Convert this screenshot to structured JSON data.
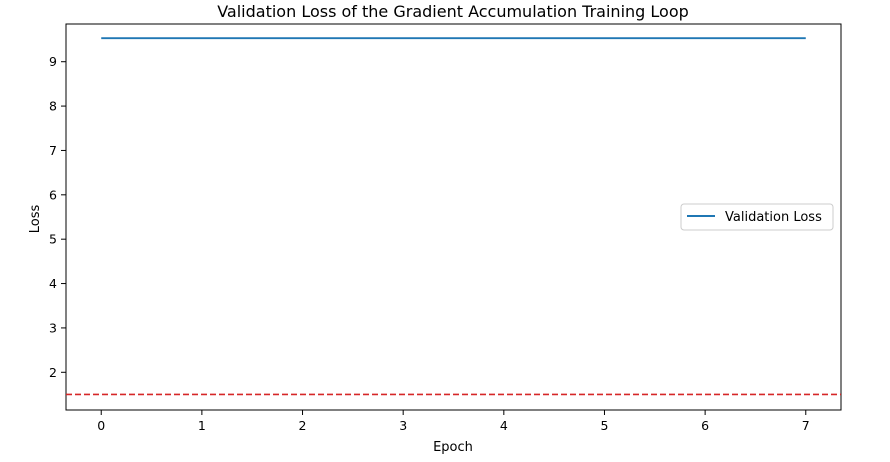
{
  "chart_data": {
    "type": "line",
    "title": "Validation Loss of the Gradient Accumulation Training Loop",
    "xlabel": "Epoch",
    "ylabel": "Loss",
    "x": [
      0,
      1,
      2,
      3,
      4,
      5,
      6,
      7
    ],
    "xticks": [
      "0",
      "1",
      "2",
      "3",
      "4",
      "5",
      "6",
      "7"
    ],
    "yticks": [
      "2",
      "3",
      "4",
      "5",
      "6",
      "7",
      "8",
      "9"
    ],
    "xlim": [
      -0.35,
      7.35
    ],
    "ylim": [
      1.15,
      9.85
    ],
    "series": [
      {
        "name": "Validation Loss",
        "values": [
          9.53,
          9.53,
          9.53,
          9.53,
          9.53,
          9.53,
          9.53,
          9.53
        ],
        "color": "#1f77b4"
      }
    ],
    "reference_line": {
      "y": 1.5,
      "color": "#d62728",
      "style": "dashed"
    },
    "legend_position": "center-right",
    "grid": false
  }
}
